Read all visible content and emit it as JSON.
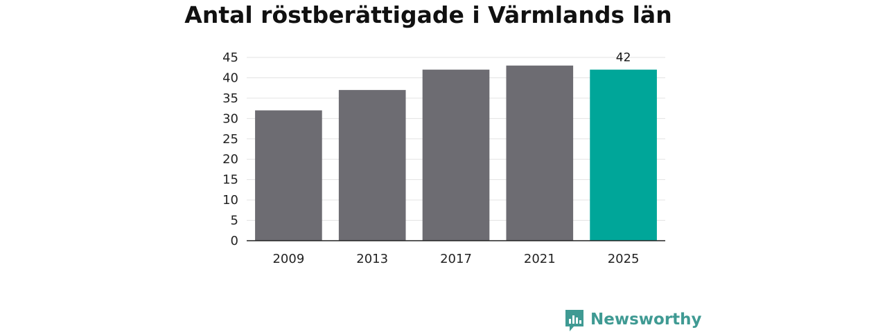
{
  "chart_data": {
    "type": "bar",
    "title": "Antal röstberättigade i Värmlands län",
    "xlabel": "",
    "ylabel": "",
    "categories": [
      "2009",
      "2013",
      "2017",
      "2021",
      "2025"
    ],
    "values": [
      32,
      37,
      42,
      43,
      42
    ],
    "ylim": [
      0,
      45
    ],
    "yticks": [
      0,
      5,
      10,
      15,
      20,
      25,
      30,
      35,
      40,
      45
    ],
    "grid": true,
    "highlight_index": 4,
    "data_labels": [
      {
        "index": 4,
        "text": "42"
      }
    ],
    "colors": {
      "bar": "#6d6c72",
      "highlight": "#00a699"
    }
  },
  "branding": {
    "logo_text": "Newsworthy",
    "logo_icon": "bar-chart-speech-bubble-icon",
    "logo_color": "#3f9a93"
  }
}
